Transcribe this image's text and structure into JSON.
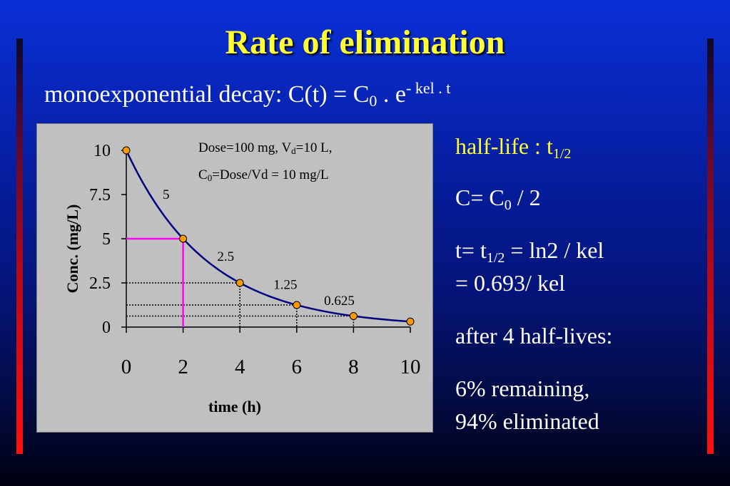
{
  "slide": {
    "title": "Rate of elimination",
    "subtitle": {
      "prefix": "monoexponential decay: C(t) = C",
      "sub": "0",
      "middle": " . e",
      "sup": "- kel . t"
    }
  },
  "annotation": {
    "line1_a": "Dose=100 mg, V",
    "line1_sub": "d",
    "line1_b": "=10 L,",
    "line2_a": "C",
    "line2_sub": "0",
    "line2_b": "=Dose/Vd = 10 mg/L"
  },
  "notes": {
    "halflife_a": "half-life : t",
    "halflife_sub": "1/2",
    "c_a": "C= C",
    "c_sub": "0",
    "c_b": " / 2",
    "t_a": "t= t",
    "t_sub": "1/2",
    "t_b": " = ln2 / kel",
    "t_line2": "= 0.693/ kel",
    "after": "after 4 half-lives:",
    "pct1": "6% remaining,",
    "pct2": "94% eliminated"
  },
  "colors": {
    "curve": "#000080",
    "points": "#ff9900",
    "halflife_marker": "#ff00ff",
    "title": "#ffff33",
    "panel": "#c0c0c0"
  },
  "chart_data": {
    "type": "line",
    "xlabel": "time (h)",
    "ylabel": "Conc. (mg/L)",
    "xlim": [
      0,
      10
    ],
    "ylim": [
      0,
      10
    ],
    "x_ticks": [
      0,
      2,
      4,
      6,
      8,
      10
    ],
    "y_ticks": [
      0,
      2.5,
      5,
      7.5,
      10
    ],
    "y_tick_labels": [
      "0",
      "2.5",
      "5",
      "7.5",
      "10"
    ],
    "x": [
      0,
      2,
      4,
      6,
      8,
      10
    ],
    "y": [
      10,
      5,
      2.5,
      1.25,
      0.625,
      0.3125
    ],
    "half_life_h": 2,
    "data_labels": [
      {
        "x": 1.4,
        "y": 7.5,
        "text": "5"
      },
      {
        "x": 3.5,
        "y": 4.0,
        "text": "2.5"
      },
      {
        "x": 5.6,
        "y": 2.4,
        "text": "1.25"
      },
      {
        "x": 7.5,
        "y": 1.5,
        "text": "0.625"
      }
    ]
  }
}
